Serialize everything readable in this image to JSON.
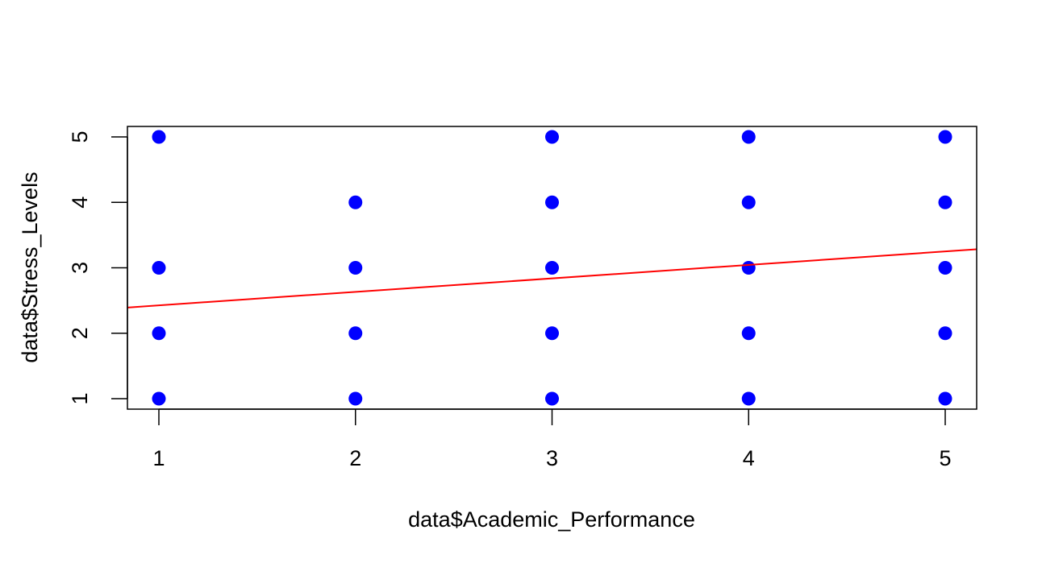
{
  "chart_data": {
    "type": "scatter",
    "title": "",
    "xlabel": "data$Academic_Performance",
    "ylabel": "data$Stress_Levels",
    "xlim": [
      0.84,
      5.16
    ],
    "ylim": [
      0.84,
      5.16
    ],
    "xticks": [
      1,
      2,
      3,
      4,
      5
    ],
    "yticks": [
      1,
      2,
      3,
      4,
      5
    ],
    "grid": false,
    "legend": "none",
    "point_color": "#0000FF",
    "line_color": "#FF0000",
    "points": [
      {
        "x": 1,
        "y": 5
      },
      {
        "x": 1,
        "y": 3
      },
      {
        "x": 1,
        "y": 2
      },
      {
        "x": 1,
        "y": 1
      },
      {
        "x": 2,
        "y": 4
      },
      {
        "x": 2,
        "y": 3
      },
      {
        "x": 2,
        "y": 2
      },
      {
        "x": 2,
        "y": 1
      },
      {
        "x": 3,
        "y": 5
      },
      {
        "x": 3,
        "y": 4
      },
      {
        "x": 3,
        "y": 3
      },
      {
        "x": 3,
        "y": 2
      },
      {
        "x": 3,
        "y": 1
      },
      {
        "x": 4,
        "y": 5
      },
      {
        "x": 4,
        "y": 4
      },
      {
        "x": 4,
        "y": 3
      },
      {
        "x": 4,
        "y": 2
      },
      {
        "x": 4,
        "y": 1
      },
      {
        "x": 5,
        "y": 5
      },
      {
        "x": 5,
        "y": 4
      },
      {
        "x": 5,
        "y": 3
      },
      {
        "x": 5,
        "y": 2
      },
      {
        "x": 5,
        "y": 1
      }
    ],
    "fit_line": {
      "intercept": 2.22,
      "slope": 0.206
    }
  }
}
